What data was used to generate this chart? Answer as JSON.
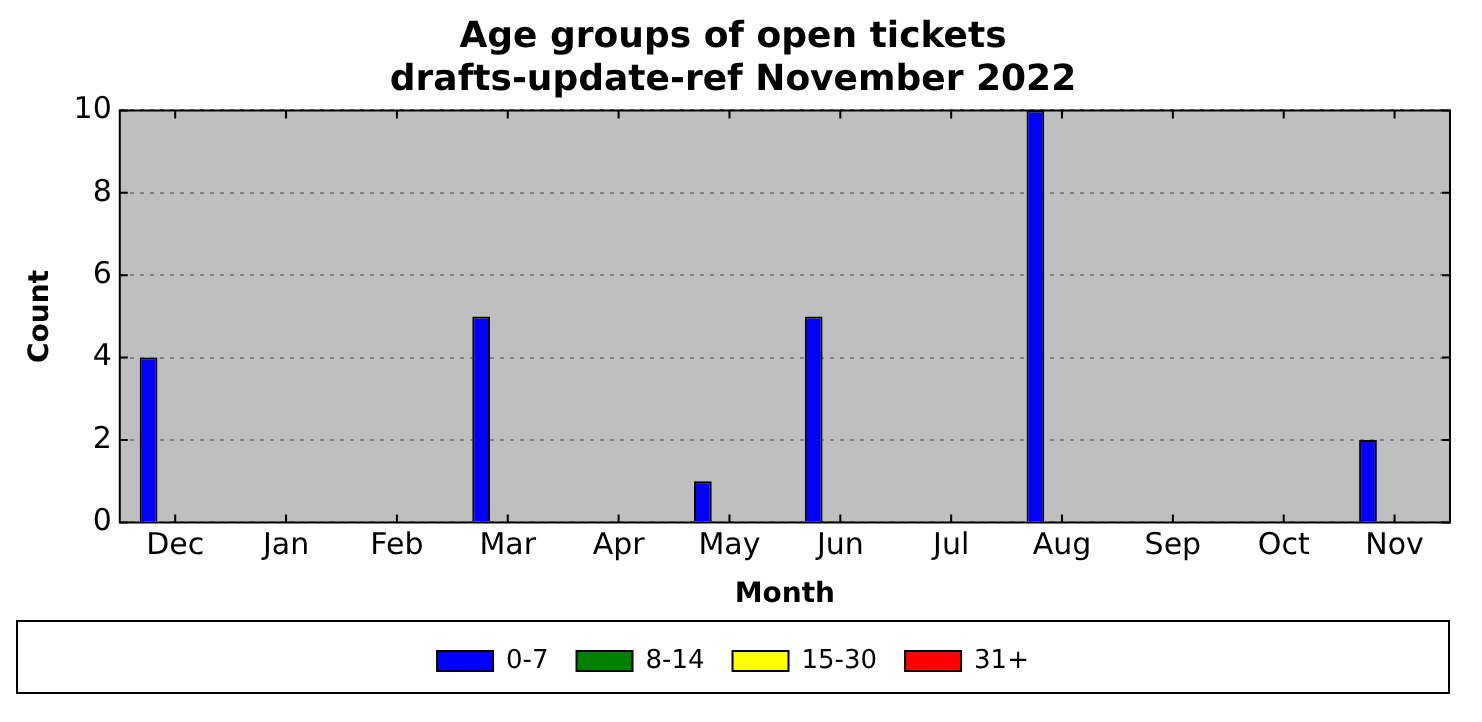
{
  "chart_data": {
    "type": "bar",
    "title": "Age groups of open tickets\ndrafts-update-ref November 2022",
    "xlabel": "Month",
    "ylabel": "Count",
    "categories": [
      "Dec",
      "Jan",
      "Feb",
      "Mar",
      "Apr",
      "May",
      "Jun",
      "Jul",
      "Aug",
      "Sep",
      "Oct",
      "Nov"
    ],
    "series": [
      {
        "name": "0-7",
        "color": "#0000ff",
        "values": [
          4,
          0,
          0,
          5,
          0,
          1,
          5,
          0,
          10,
          0,
          0,
          2
        ]
      },
      {
        "name": "8-14",
        "color": "#008000",
        "values": [
          0,
          0,
          0,
          0,
          0,
          0,
          0,
          0,
          0,
          0,
          0,
          0
        ]
      },
      {
        "name": "15-30",
        "color": "#ffff00",
        "values": [
          0,
          0,
          0,
          0,
          0,
          0,
          0,
          0,
          0,
          0,
          0,
          0
        ]
      },
      {
        "name": "31+",
        "color": "#ff0000",
        "values": [
          0,
          0,
          0,
          0,
          0,
          0,
          0,
          0,
          0,
          0,
          0,
          0
        ]
      }
    ],
    "ylim": [
      0,
      10
    ],
    "yticks": [
      0,
      2,
      4,
      6,
      8,
      10
    ],
    "grid": "y",
    "legend": "bottom"
  }
}
